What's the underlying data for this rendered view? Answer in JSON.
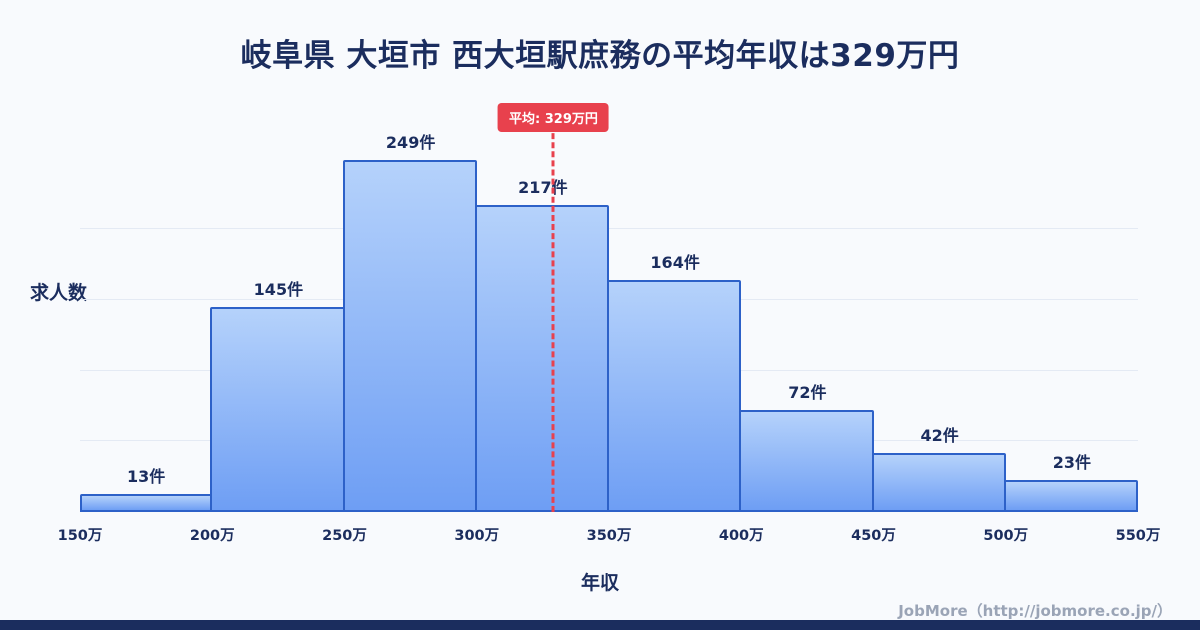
{
  "title": "岐阜県 大垣市 西大垣駅庶務の平均年収は329万円",
  "average_badge": "平均: 329万円",
  "footer": "JobMore（http://jobmore.co.jp/）",
  "colors": {
    "navy": "#1b2d5e",
    "bar_top": "#b5d2fb",
    "bar_bottom": "#6e9ef4",
    "bar_border": "#2d61c8",
    "average_red": "#e8414d",
    "background": "#f8fafd",
    "gridline": "#e4eaf4",
    "footer_gray": "#9aa4b6"
  },
  "chart_data": {
    "type": "bar",
    "subtype": "histogram",
    "title": "岐阜県 大垣市 西大垣駅庶務の平均年収は329万円",
    "bin_edges": [
      "150万",
      "200万",
      "250万",
      "300万",
      "350万",
      "400万",
      "450万",
      "500万",
      "550万"
    ],
    "values": [
      13,
      145,
      249,
      217,
      164,
      72,
      42,
      23
    ],
    "value_suffix": "件",
    "value_labels": [
      "13件",
      "145件",
      "249件",
      "217件",
      "164件",
      "72件",
      "42件",
      "23件"
    ],
    "ylabel": "求人数",
    "xlabel": "年収",
    "x_range": [
      150,
      550
    ],
    "ylim": [
      0,
      260
    ],
    "grid": true,
    "gridline_step": 50,
    "average_value": 329,
    "average_label": "平均: 329万円",
    "legend_position": "none"
  }
}
